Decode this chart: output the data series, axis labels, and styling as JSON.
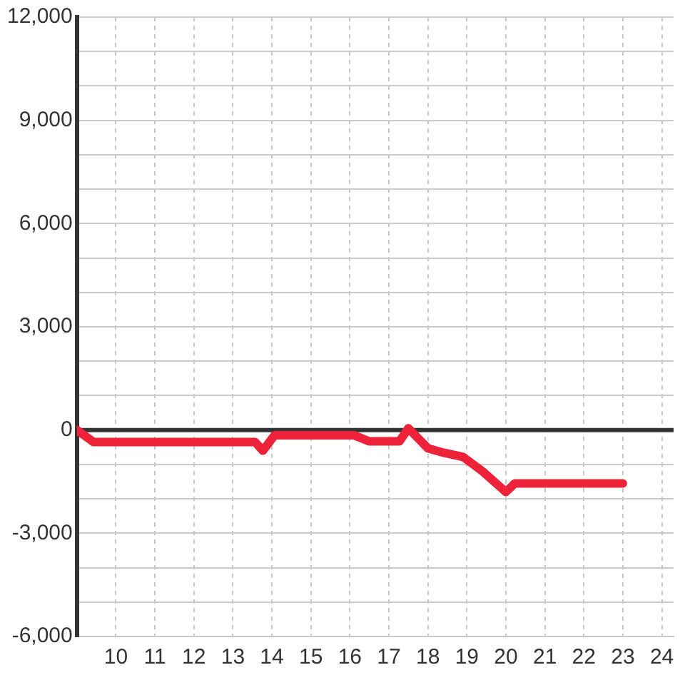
{
  "chart_data": {
    "type": "line",
    "x": [
      9,
      9.43,
      13.57,
      13.77,
      14.07,
      16.1,
      16.5,
      17.27,
      17.5,
      18.0,
      18.4,
      18.9,
      19.4,
      20.0,
      20.23,
      23.0
    ],
    "series": [
      {
        "color": "#ee2238",
        "values": [
          0,
          -350,
          -350,
          -600,
          -150,
          -150,
          -330,
          -330,
          50,
          -530,
          -660,
          -780,
          -1200,
          -1800,
          -1550,
          -1550
        ]
      }
    ],
    "xlim": [
      9,
      24.3
    ],
    "xticks": [
      10,
      11,
      12,
      13,
      14,
      15,
      16,
      17,
      18,
      19,
      20,
      21,
      22,
      23,
      24
    ],
    "ylim": [
      -6000,
      12000
    ],
    "yticks": [
      {
        "value": -6000,
        "label": "-6,000"
      },
      {
        "value": -5000,
        "label": null
      },
      {
        "value": -4000,
        "label": null
      },
      {
        "value": -3000,
        "label": "-3,000"
      },
      {
        "value": -2000,
        "label": null
      },
      {
        "value": -1000,
        "label": null
      },
      0,
      {
        "value": 1000,
        "label": null
      },
      {
        "value": 2000,
        "label": null
      },
      {
        "value": 3000,
        "label": "3,000"
      },
      {
        "value": 4000,
        "label": null
      },
      {
        "value": 5000,
        "label": null
      },
      {
        "value": 6000,
        "label": "6,000"
      },
      {
        "value": 7000,
        "label": null
      },
      {
        "value": 8000,
        "label": null
      },
      {
        "value": 9000,
        "label": "9,000"
      },
      {
        "value": 10000,
        "label": null
      },
      {
        "value": 11000,
        "label": null
      },
      {
        "value": 12000,
        "label": "12,000"
      }
    ],
    "grid": true,
    "ref_lines": [
      {
        "axis": "y",
        "value": 0,
        "color": "#333333"
      }
    ]
  }
}
